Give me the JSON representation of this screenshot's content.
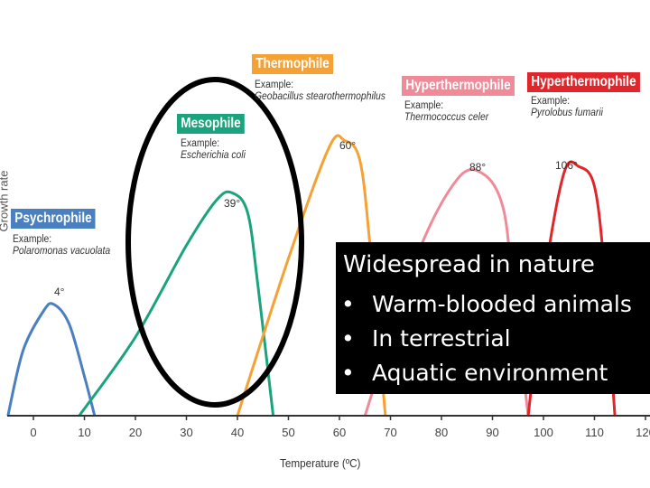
{
  "chart_data": {
    "type": "line",
    "xlabel": "Temperature (ºC)",
    "ylabel": "Growth rate",
    "x_ticks": [
      0,
      10,
      20,
      30,
      40,
      50,
      60,
      70,
      80,
      90,
      100,
      110,
      120
    ],
    "xlim": [
      -5,
      120
    ],
    "series": [
      {
        "name": "Psychrophile",
        "example_label": "Example:",
        "example": "Polaromonas vacuolata",
        "color": "#4a7fc0",
        "peak_label": "4°",
        "x": [
          -5,
          -2,
          2,
          4,
          7,
          10,
          12
        ],
        "y": [
          0,
          0.5,
          0.8,
          0.85,
          0.7,
          0.3,
          0
        ]
      },
      {
        "name": "Mesophile",
        "example_label": "Example:",
        "example": "Escherichia coli",
        "color": "#1aa37c",
        "peak_label": "39°",
        "x": [
          9,
          20,
          30,
          36,
          39,
          42,
          44,
          47
        ],
        "y": [
          0,
          0.6,
          1.3,
          1.65,
          1.7,
          1.55,
          1.0,
          0
        ]
      },
      {
        "name": "Thermophile",
        "example_label": "Example:",
        "example": "Geobacillus stearothermophilus",
        "color": "#f5a133",
        "peak_label": "60°",
        "x": [
          40,
          50,
          58,
          61,
          64,
          66,
          69
        ],
        "y": [
          0,
          1.2,
          2.05,
          2.1,
          1.95,
          1.3,
          0
        ]
      },
      {
        "name": "Hyperthermophile",
        "example_label": "Example:",
        "example": "Thermococcus celer",
        "color": "#f08a98",
        "peak_label": "88°",
        "x": [
          65,
          75,
          83,
          88,
          92,
          94,
          97
        ],
        "y": [
          0,
          1.2,
          1.8,
          1.85,
          1.6,
          1.0,
          0
        ]
      },
      {
        "name": "Hyperthermophile",
        "example_label": "Example:",
        "example": "Pyrolobus fumarii",
        "color": "#e0262a",
        "peak_label": "106°",
        "x": [
          97,
          100,
          104,
          107,
          110,
          112,
          114
        ],
        "y": [
          0,
          1.0,
          1.85,
          1.9,
          1.75,
          1.1,
          0
        ]
      }
    ]
  },
  "overlay": {
    "title": "Widespread in nature",
    "items": [
      "Warm-blooded animals",
      "In terrestrial",
      "Aquatic environment"
    ],
    "bullet": "•"
  },
  "colors": {
    "axis": "#333333",
    "grid_background": "#ffffff",
    "highlight_ellipse": "#000000"
  }
}
